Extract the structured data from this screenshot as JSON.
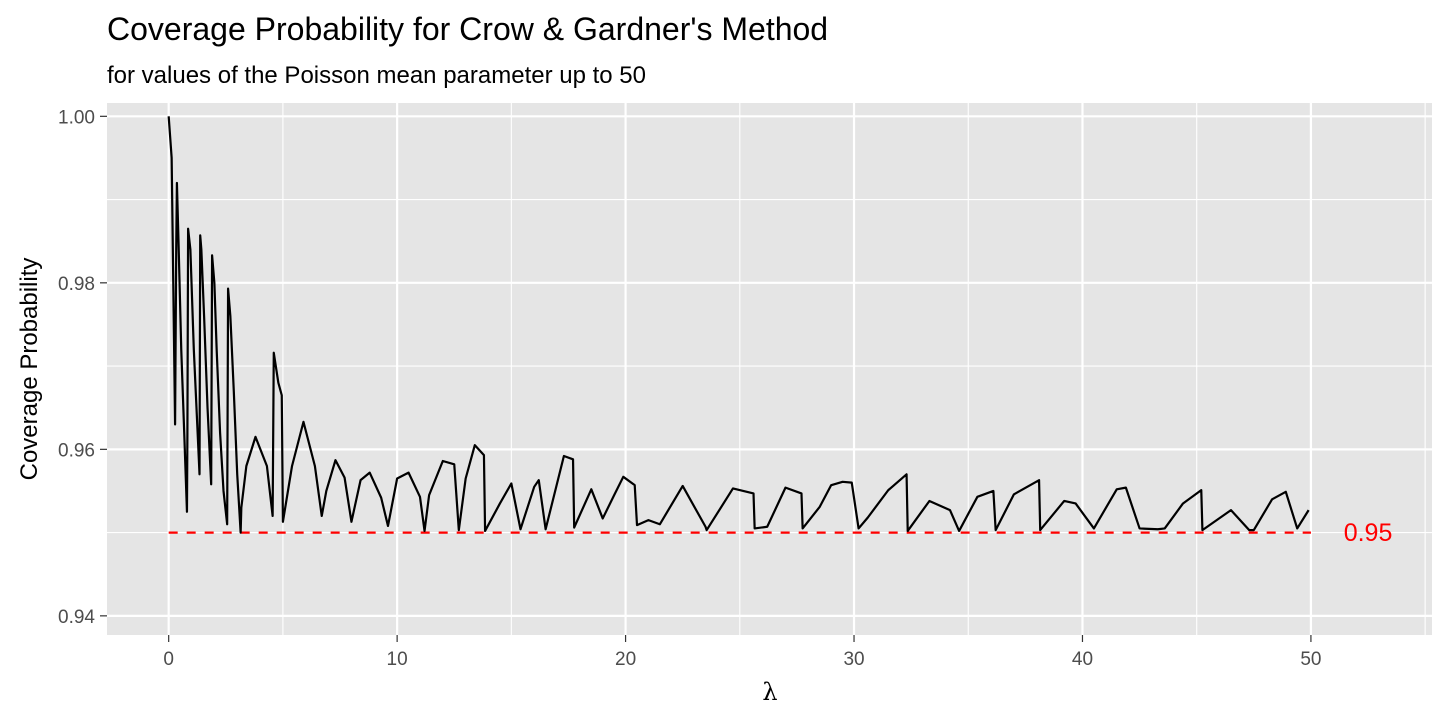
{
  "chart_data": {
    "type": "line",
    "title": "Coverage Probability for Crow & Gardner's Method",
    "subtitle": "for values of the Poisson mean parameter up to 50",
    "xlabel": "λ",
    "ylabel": "Coverage Probability",
    "xlim": [
      -2.7,
      55.3
    ],
    "ylim": [
      0.9377,
      1.0016
    ],
    "x_ticks": [
      0,
      10,
      20,
      30,
      40,
      50
    ],
    "x_tick_labels": [
      "0",
      "10",
      "20",
      "30",
      "40",
      "50"
    ],
    "y_ticks": [
      0.94,
      0.96,
      0.98,
      1.0
    ],
    "y_tick_labels": [
      "0.94",
      "0.96",
      "0.98",
      "1.00"
    ],
    "grid": true,
    "colors": {
      "panel": "#e5e5e5",
      "grid": "#ffffff",
      "line": "#000000",
      "reference": "#ff0000",
      "tick_text": "#4d4d4d"
    },
    "series": [
      {
        "x": [
          0.0,
          0.13,
          0.28,
          0.33,
          0.36,
          0.43,
          0.55,
          0.68,
          0.8,
          0.82,
          0.85,
          0.95,
          1.1,
          1.25,
          1.35,
          1.38,
          1.43,
          1.55,
          1.7,
          1.86,
          1.9,
          2.0,
          2.1,
          2.25,
          2.4,
          2.56,
          2.6,
          2.7,
          2.85,
          3.0,
          3.15,
          3.18,
          3.4,
          3.8,
          4.3,
          4.55,
          4.6,
          4.8,
          4.95,
          5.0,
          5.4,
          5.9,
          6.4,
          6.7,
          6.9,
          7.3,
          7.7,
          8.0,
          8.4,
          8.8,
          9.3,
          9.6,
          10.0,
          10.5,
          11.0,
          11.2,
          11.4,
          12.0,
          12.5,
          12.7,
          13.0,
          13.4,
          13.8,
          13.85,
          14.5,
          15.0,
          15.4,
          16.0,
          16.2,
          16.5,
          17.3,
          17.7,
          17.75,
          18.5,
          19.0,
          19.5,
          19.9,
          20.4,
          20.5,
          21.0,
          21.5,
          22.5,
          23.5,
          23.55,
          24.7,
          25.6,
          25.65,
          26.2,
          27.0,
          27.7,
          27.75,
          28.5,
          29.0,
          29.5,
          29.9,
          30.2,
          30.6,
          31.5,
          32.3,
          32.35,
          33.3,
          34.2,
          34.6,
          35.4,
          36.1,
          36.2,
          37.0,
          38.1,
          38.15,
          39.2,
          39.7,
          40.5,
          41.5,
          41.9,
          42.5,
          43.3,
          43.6,
          44.4,
          45.2,
          45.25,
          46.5,
          47.3,
          47.5,
          48.3,
          48.9,
          49.4,
          49.9
        ],
        "y": [
          1.0,
          0.995,
          0.963,
          0.984,
          0.992,
          0.985,
          0.972,
          0.962,
          0.9525,
          0.962,
          0.9865,
          0.984,
          0.972,
          0.963,
          0.957,
          0.9857,
          0.984,
          0.976,
          0.965,
          0.9558,
          0.9833,
          0.98,
          0.972,
          0.962,
          0.955,
          0.951,
          0.9793,
          0.976,
          0.967,
          0.957,
          0.95,
          0.953,
          0.958,
          0.9615,
          0.958,
          0.952,
          0.9716,
          0.968,
          0.9665,
          0.9513,
          0.958,
          0.9633,
          0.958,
          0.952,
          0.955,
          0.9587,
          0.9566,
          0.9513,
          0.9563,
          0.9572,
          0.9542,
          0.9508,
          0.9565,
          0.9572,
          0.9543,
          0.9502,
          0.9545,
          0.9586,
          0.9582,
          0.9503,
          0.9565,
          0.9605,
          0.9593,
          0.9502,
          0.9535,
          0.9559,
          0.9504,
          0.9555,
          0.9563,
          0.9504,
          0.9592,
          0.9588,
          0.9506,
          0.9552,
          0.9517,
          0.9545,
          0.9567,
          0.9557,
          0.9509,
          0.9515,
          0.951,
          0.9556,
          0.9507,
          0.9503,
          0.9553,
          0.9547,
          0.9505,
          0.9507,
          0.9554,
          0.9547,
          0.9505,
          0.9531,
          0.9557,
          0.9561,
          0.956,
          0.9505,
          0.9518,
          0.9551,
          0.957,
          0.9502,
          0.9538,
          0.9527,
          0.9502,
          0.9543,
          0.955,
          0.9503,
          0.9546,
          0.9563,
          0.9503,
          0.9538,
          0.9535,
          0.9505,
          0.9552,
          0.9554,
          0.9505,
          0.9504,
          0.9505,
          0.9535,
          0.9551,
          0.9503,
          0.9527,
          0.9503,
          0.9503,
          0.954,
          0.9549,
          0.9505,
          0.9527
        ]
      }
    ],
    "reference_line": {
      "y": 0.95,
      "x_from": 0,
      "x_to": 50,
      "style": "dashed"
    },
    "annotations": [
      {
        "text": "0.95",
        "x": 52.5,
        "y": 0.95
      }
    ]
  }
}
